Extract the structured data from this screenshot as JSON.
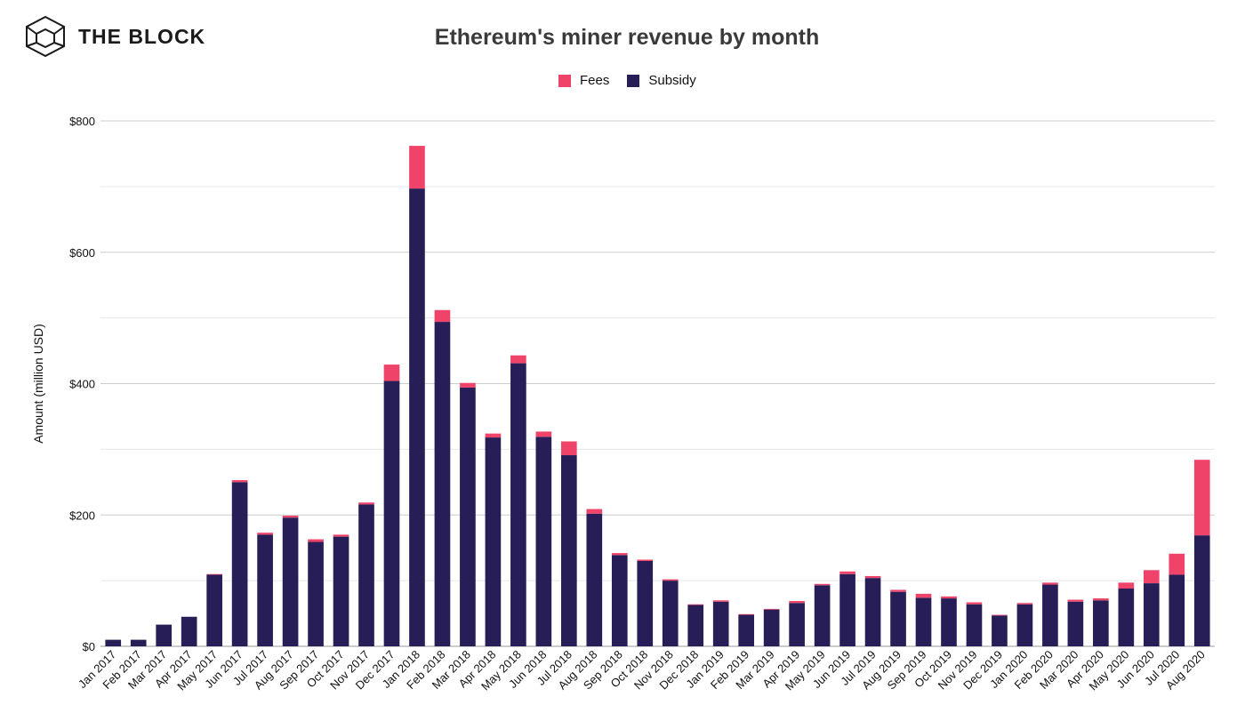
{
  "brand": {
    "name": "THE BLOCK"
  },
  "colors": {
    "fees": "#F0436A",
    "subsidy": "#271E57",
    "grid": "#d9d9d9"
  },
  "chart_data": {
    "type": "bar",
    "stacked": true,
    "title": "Ethereum's miner revenue by month",
    "xlabel": "",
    "ylabel": "Amount (million USD)",
    "ylim": [
      0,
      800
    ],
    "yticks": [
      0,
      200,
      400,
      600,
      800
    ],
    "ytick_labels": [
      "$0",
      "$200",
      "$400",
      "$600",
      "$800"
    ],
    "legend": [
      "Fees",
      "Subsidy"
    ],
    "categories": [
      "Jan 2017",
      "Feb 2017",
      "Mar 2017",
      "Apr 2017",
      "May 2017",
      "Jun 2017",
      "Jul 2017",
      "Aug 2017",
      "Sep 2017",
      "Oct 2017",
      "Nov 2017",
      "Dec 2017",
      "Jan 2018",
      "Feb 2018",
      "Mar 2018",
      "Apr 2018",
      "May 2018",
      "Jun 2018",
      "Jul 2018",
      "Aug 2018",
      "Sep 2018",
      "Oct 2018",
      "Nov 2018",
      "Dec 2018",
      "Jan 2019",
      "Feb 2019",
      "Mar 2019",
      "Apr 2019",
      "May 2019",
      "Jun 2019",
      "Jul 2019",
      "Aug 2019",
      "Sep 2019",
      "Oct 2019",
      "Nov 2019",
      "Dec 2019",
      "Jan 2020",
      "Feb 2020",
      "Mar 2020",
      "Apr 2020",
      "May 2020",
      "Jun 2020",
      "Jul 2020",
      "Aug 2020"
    ],
    "series": [
      {
        "name": "Subsidy",
        "values": [
          10,
          10,
          33,
          45,
          109,
          250,
          170,
          196,
          159,
          167,
          216,
          404,
          697,
          494,
          394,
          318,
          431,
          319,
          291,
          202,
          139,
          130,
          100,
          63,
          68,
          48,
          56,
          66,
          93,
          110,
          104,
          83,
          74,
          73,
          64,
          47,
          64,
          94,
          68,
          70,
          88,
          96,
          109,
          169
        ]
      },
      {
        "name": "Fees",
        "values": [
          0,
          0,
          0,
          0,
          1,
          3,
          3,
          3,
          4,
          3,
          3,
          25,
          65,
          18,
          7,
          6,
          12,
          8,
          21,
          7,
          3,
          2,
          2,
          1,
          2,
          1,
          1,
          3,
          2,
          4,
          3,
          3,
          6,
          3,
          3,
          1,
          2,
          3,
          3,
          3,
          9,
          20,
          32,
          115
        ]
      }
    ]
  }
}
